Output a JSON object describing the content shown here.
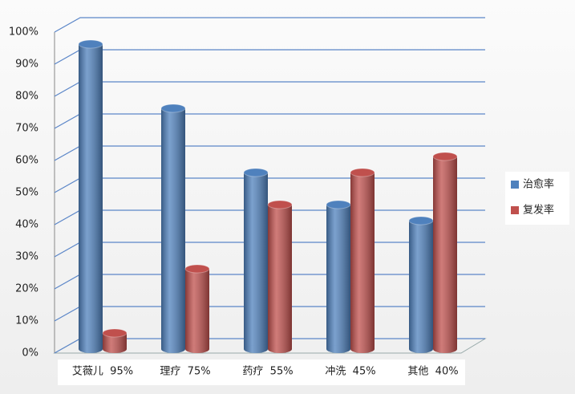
{
  "chart_data": {
    "type": "bar3d",
    "categories": [
      "艾薇儿  95%",
      "理疗  75%",
      "药疗  55%",
      "冲洗  45%",
      "其他  40%"
    ],
    "series": [
      {
        "name": "治愈率",
        "color": "#4f81bd",
        "values": [
          95,
          75,
          55,
          45,
          40
        ]
      },
      {
        "name": "复发率",
        "color": "#c0504d",
        "values": [
          5,
          25,
          45,
          55,
          60
        ]
      }
    ],
    "ylim": [
      0,
      100
    ],
    "yticks": [
      {
        "value": 0,
        "label": "0%"
      },
      {
        "value": 10,
        "label": "10%"
      },
      {
        "value": 20,
        "label": "20%"
      },
      {
        "value": 30,
        "label": "30%"
      },
      {
        "value": 40,
        "label": "40%"
      },
      {
        "value": 50,
        "label": "50%"
      },
      {
        "value": 60,
        "label": "60%"
      },
      {
        "value": 70,
        "label": "70%"
      },
      {
        "value": 80,
        "label": "80%"
      },
      {
        "value": 90,
        "label": "90%"
      },
      {
        "value": 100,
        "label": "100%"
      }
    ],
    "grid": true,
    "legend": "right"
  }
}
